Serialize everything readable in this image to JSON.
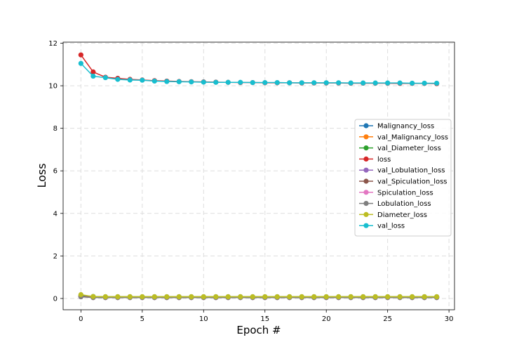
{
  "chart_data": {
    "type": "line",
    "title": "",
    "xlabel": "Epoch #",
    "ylabel": "Loss",
    "xlim": [
      -1.45,
      30.45
    ],
    "ylim": [
      -0.53,
      12.05
    ],
    "xticks": [
      0,
      5,
      10,
      15,
      20,
      25,
      30
    ],
    "yticks": [
      0,
      2,
      4,
      6,
      8,
      10,
      12
    ],
    "grid": true,
    "legend_position": "center-right",
    "x": [
      0,
      1,
      2,
      3,
      4,
      5,
      6,
      7,
      8,
      9,
      10,
      11,
      12,
      13,
      14,
      15,
      16,
      17,
      18,
      19,
      20,
      21,
      22,
      23,
      24,
      25,
      26,
      27,
      28,
      29
    ],
    "series": [
      {
        "name": "Malignancy_loss",
        "color": "#1f77b4",
        "values": [
          0.09,
          0.05,
          0.05,
          0.05,
          0.05,
          0.05,
          0.05,
          0.05,
          0.05,
          0.05,
          0.05,
          0.05,
          0.05,
          0.05,
          0.05,
          0.05,
          0.05,
          0.05,
          0.05,
          0.05,
          0.05,
          0.05,
          0.05,
          0.05,
          0.05,
          0.05,
          0.05,
          0.05,
          0.05,
          0.05
        ]
      },
      {
        "name": "val_Malignancy_loss",
        "color": "#ff7f0e",
        "values": [
          0.12,
          0.08,
          0.08,
          0.08,
          0.08,
          0.08,
          0.08,
          0.08,
          0.08,
          0.08,
          0.08,
          0.08,
          0.08,
          0.08,
          0.08,
          0.08,
          0.08,
          0.08,
          0.08,
          0.08,
          0.08,
          0.08,
          0.08,
          0.08,
          0.08,
          0.08,
          0.08,
          0.08,
          0.08,
          0.08
        ]
      },
      {
        "name": "val_Diameter_loss",
        "color": "#2ca02c",
        "values": [
          0.15,
          0.09,
          0.08,
          0.08,
          0.08,
          0.08,
          0.08,
          0.08,
          0.08,
          0.08,
          0.08,
          0.08,
          0.08,
          0.08,
          0.08,
          0.08,
          0.08,
          0.08,
          0.08,
          0.08,
          0.08,
          0.08,
          0.08,
          0.08,
          0.08,
          0.08,
          0.08,
          0.08,
          0.08,
          0.08
        ]
      },
      {
        "name": "loss",
        "color": "#d62728",
        "values": [
          11.45,
          10.65,
          10.4,
          10.35,
          10.3,
          10.27,
          10.24,
          10.22,
          10.2,
          10.19,
          10.18,
          10.17,
          10.16,
          10.15,
          10.15,
          10.14,
          10.14,
          10.14,
          10.13,
          10.13,
          10.13,
          10.13,
          10.12,
          10.12,
          10.12,
          10.12,
          10.11,
          10.11,
          10.11,
          10.1
        ]
      },
      {
        "name": "val_Lobulation_loss",
        "color": "#9467bd",
        "values": [
          0.1,
          0.06,
          0.06,
          0.06,
          0.06,
          0.06,
          0.06,
          0.06,
          0.06,
          0.06,
          0.06,
          0.06,
          0.06,
          0.06,
          0.06,
          0.06,
          0.06,
          0.06,
          0.06,
          0.06,
          0.06,
          0.06,
          0.06,
          0.06,
          0.06,
          0.06,
          0.06,
          0.06,
          0.06,
          0.06
        ]
      },
      {
        "name": "val_Spiculation_loss",
        "color": "#8c564b",
        "values": [
          0.1,
          0.06,
          0.06,
          0.06,
          0.06,
          0.06,
          0.06,
          0.06,
          0.06,
          0.06,
          0.06,
          0.06,
          0.06,
          0.06,
          0.06,
          0.06,
          0.06,
          0.06,
          0.06,
          0.06,
          0.06,
          0.06,
          0.06,
          0.06,
          0.06,
          0.06,
          0.06,
          0.06,
          0.06,
          0.06
        ]
      },
      {
        "name": "Spiculation_loss",
        "color": "#e377c2",
        "values": [
          0.08,
          0.04,
          0.04,
          0.04,
          0.04,
          0.04,
          0.04,
          0.04,
          0.04,
          0.04,
          0.04,
          0.04,
          0.04,
          0.04,
          0.04,
          0.04,
          0.04,
          0.04,
          0.04,
          0.04,
          0.04,
          0.04,
          0.04,
          0.04,
          0.04,
          0.04,
          0.04,
          0.04,
          0.04,
          0.04
        ]
      },
      {
        "name": "Lobulation_loss",
        "color": "#7f7f7f",
        "values": [
          0.08,
          0.04,
          0.04,
          0.04,
          0.04,
          0.04,
          0.04,
          0.04,
          0.04,
          0.04,
          0.04,
          0.04,
          0.04,
          0.04,
          0.04,
          0.04,
          0.04,
          0.04,
          0.04,
          0.04,
          0.04,
          0.04,
          0.04,
          0.04,
          0.04,
          0.04,
          0.04,
          0.04,
          0.04,
          0.04
        ]
      },
      {
        "name": "Diameter_loss",
        "color": "#bcbd22",
        "values": [
          0.18,
          0.09,
          0.08,
          0.08,
          0.08,
          0.08,
          0.08,
          0.08,
          0.08,
          0.08,
          0.08,
          0.08,
          0.08,
          0.08,
          0.08,
          0.08,
          0.08,
          0.08,
          0.08,
          0.08,
          0.08,
          0.08,
          0.08,
          0.08,
          0.08,
          0.08,
          0.08,
          0.08,
          0.08,
          0.08
        ]
      },
      {
        "name": "val_loss",
        "color": "#17becf",
        "values": [
          11.05,
          10.45,
          10.38,
          10.3,
          10.27,
          10.26,
          10.22,
          10.2,
          10.19,
          10.18,
          10.17,
          10.16,
          10.16,
          10.16,
          10.15,
          10.15,
          10.15,
          10.14,
          10.14,
          10.14,
          10.14,
          10.14,
          10.13,
          10.13,
          10.13,
          10.13,
          10.13,
          10.12,
          10.12,
          10.12
        ]
      }
    ]
  }
}
